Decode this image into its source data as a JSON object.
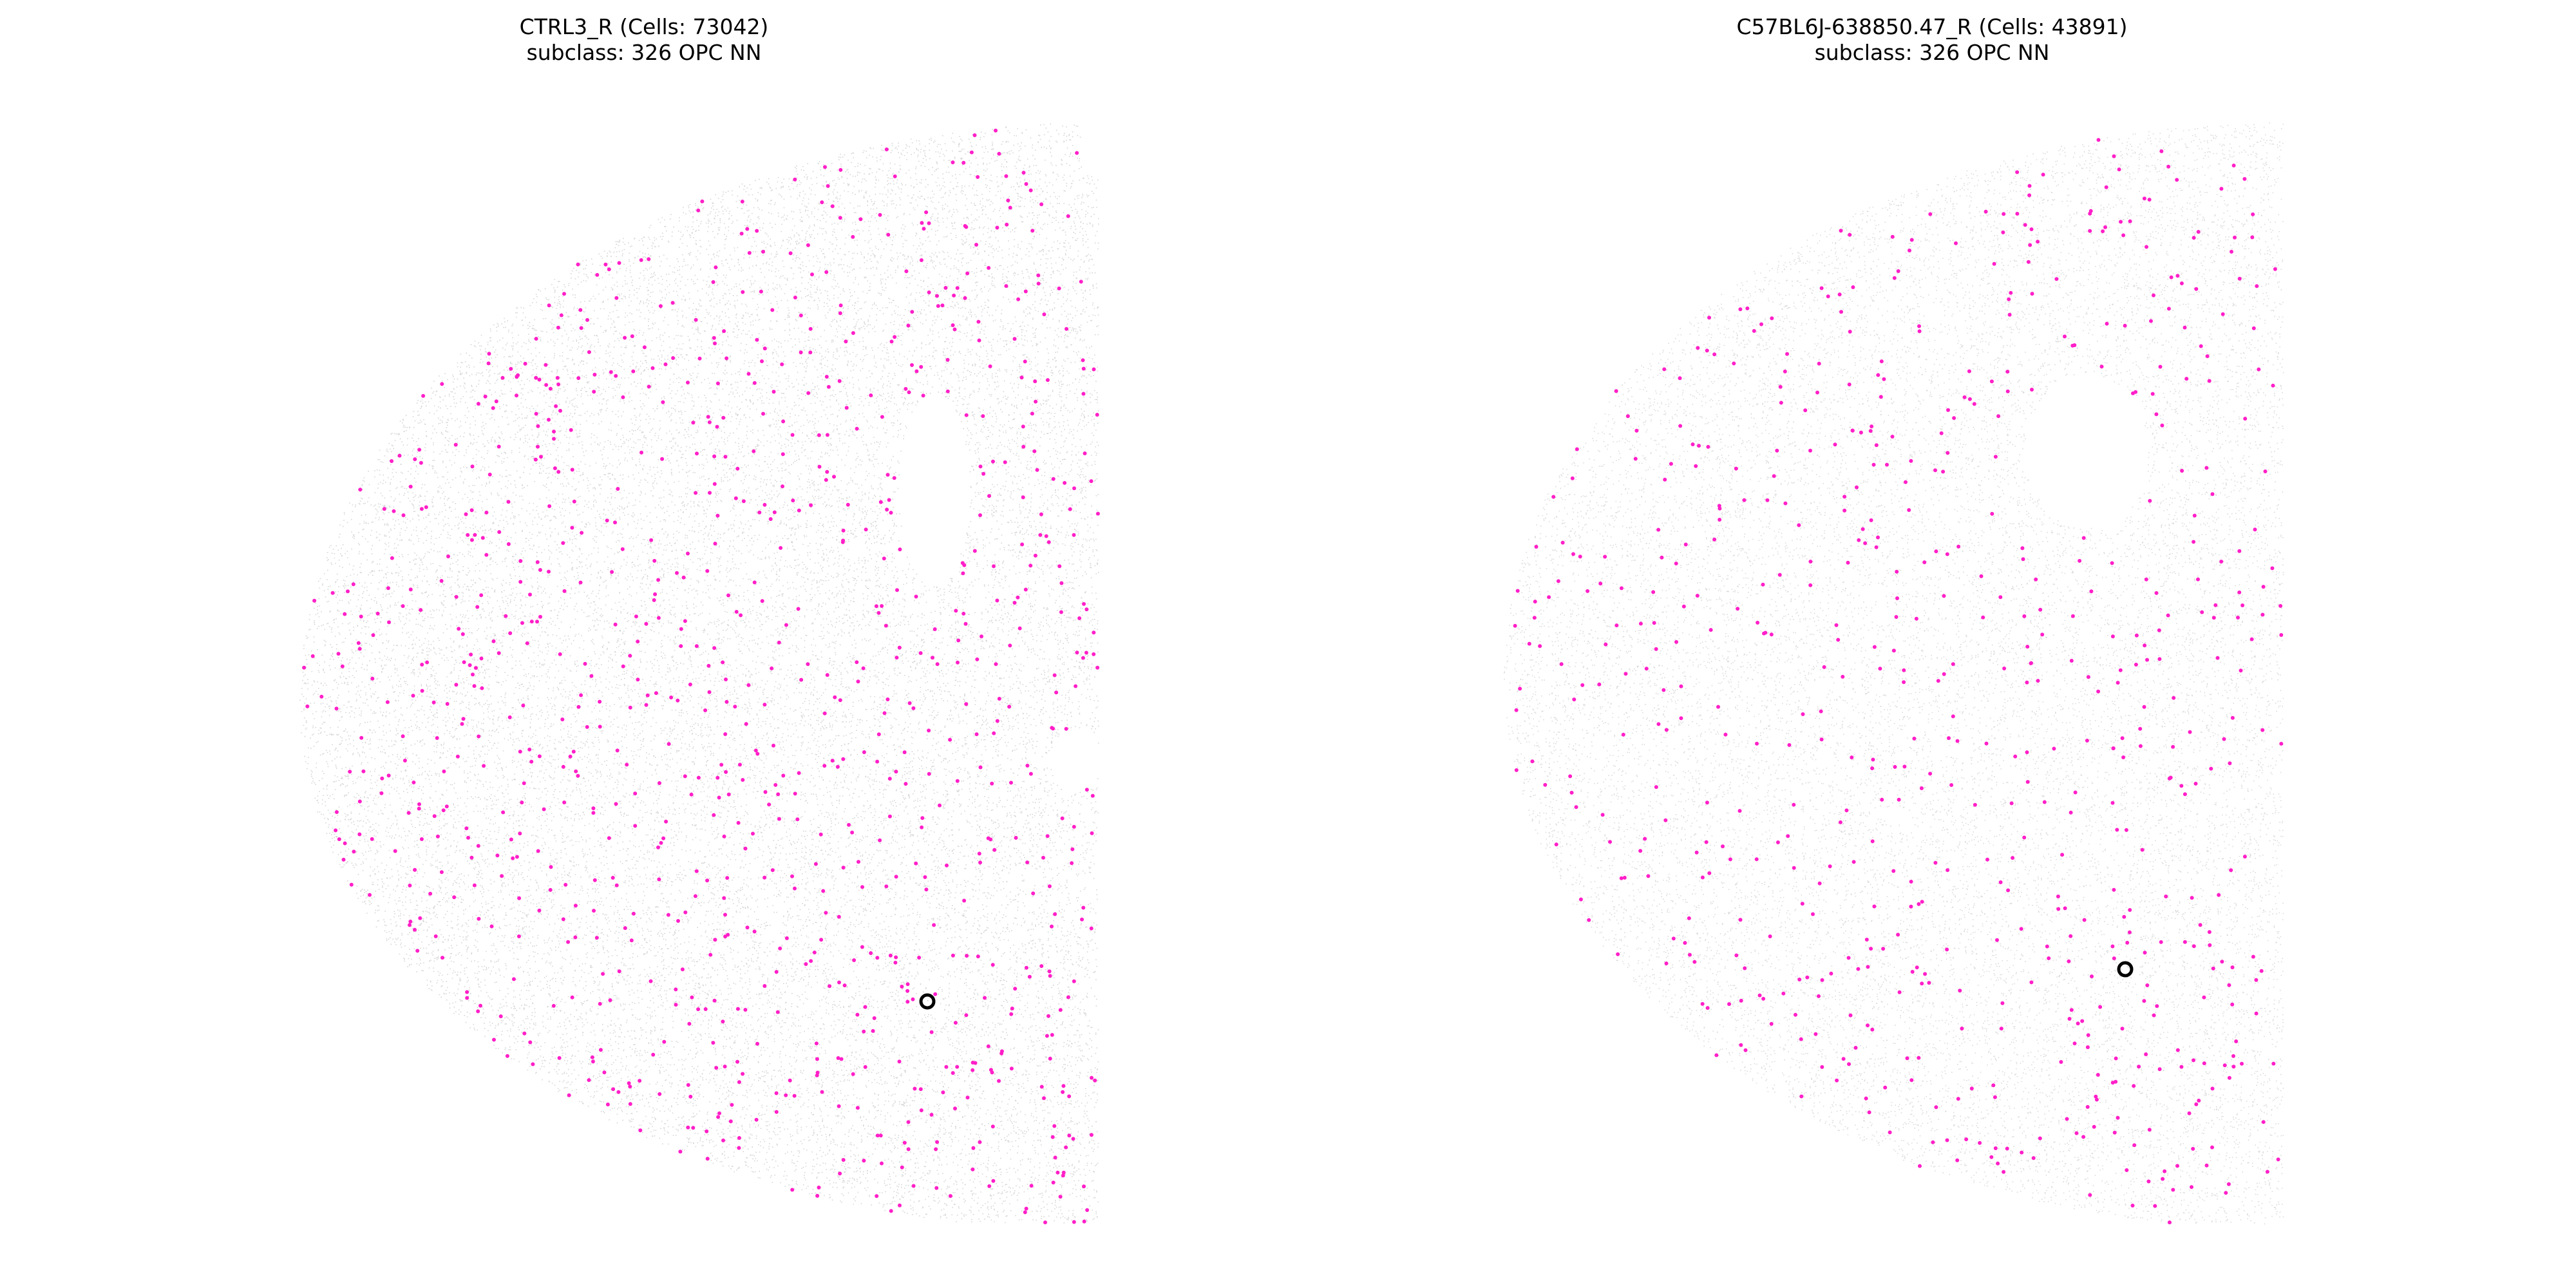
{
  "panels": [
    {
      "title": "CTRL3_R (Cells: 73042)",
      "subtitle": "subclass: 326 OPC NN"
    },
    {
      "title": "C57BL6J-638850.47_R (Cells: 43891)",
      "subtitle": "subclass: 326 OPC NN"
    }
  ],
  "chart_data": [
    {
      "type": "scatter",
      "title": "CTRL3_R (Cells: 73042)",
      "subtitle": "subclass: 326 OPC NN",
      "total_cells": 73042,
      "highlight_subclass": "326 OPC NN",
      "axes_visible": false,
      "grid": false,
      "colors": {
        "background_cells": "#c8c8c8",
        "highlight_cells": "#ff1fc8",
        "marker_ring": "#000000"
      },
      "series": [
        {
          "role": "background",
          "shape": "coronal brain hemisection, rounded left edge, cut right edge"
        },
        {
          "role": "highlight",
          "approx_points": 950
        }
      ],
      "marker": {
        "x": 0.808,
        "y": 0.204,
        "style": "open black circle"
      }
    },
    {
      "type": "scatter",
      "title": "C57BL6J-638850.47_R (Cells: 43891)",
      "subtitle": "subclass: 326 OPC NN",
      "total_cells": 43891,
      "highlight_subclass": "326 OPC NN",
      "axes_visible": false,
      "grid": false,
      "colors": {
        "background_cells": "#cfcfcf",
        "highlight_cells": "#ff1fc8",
        "marker_ring": "#000000"
      },
      "series": [
        {
          "role": "background",
          "shape": "coronal brain hemisection with hippocampus outline, cut right edge"
        },
        {
          "role": "highlight",
          "approx_points": 620
        }
      ],
      "marker": {
        "x": 0.782,
        "y": 0.242,
        "style": "open black circle"
      }
    }
  ]
}
